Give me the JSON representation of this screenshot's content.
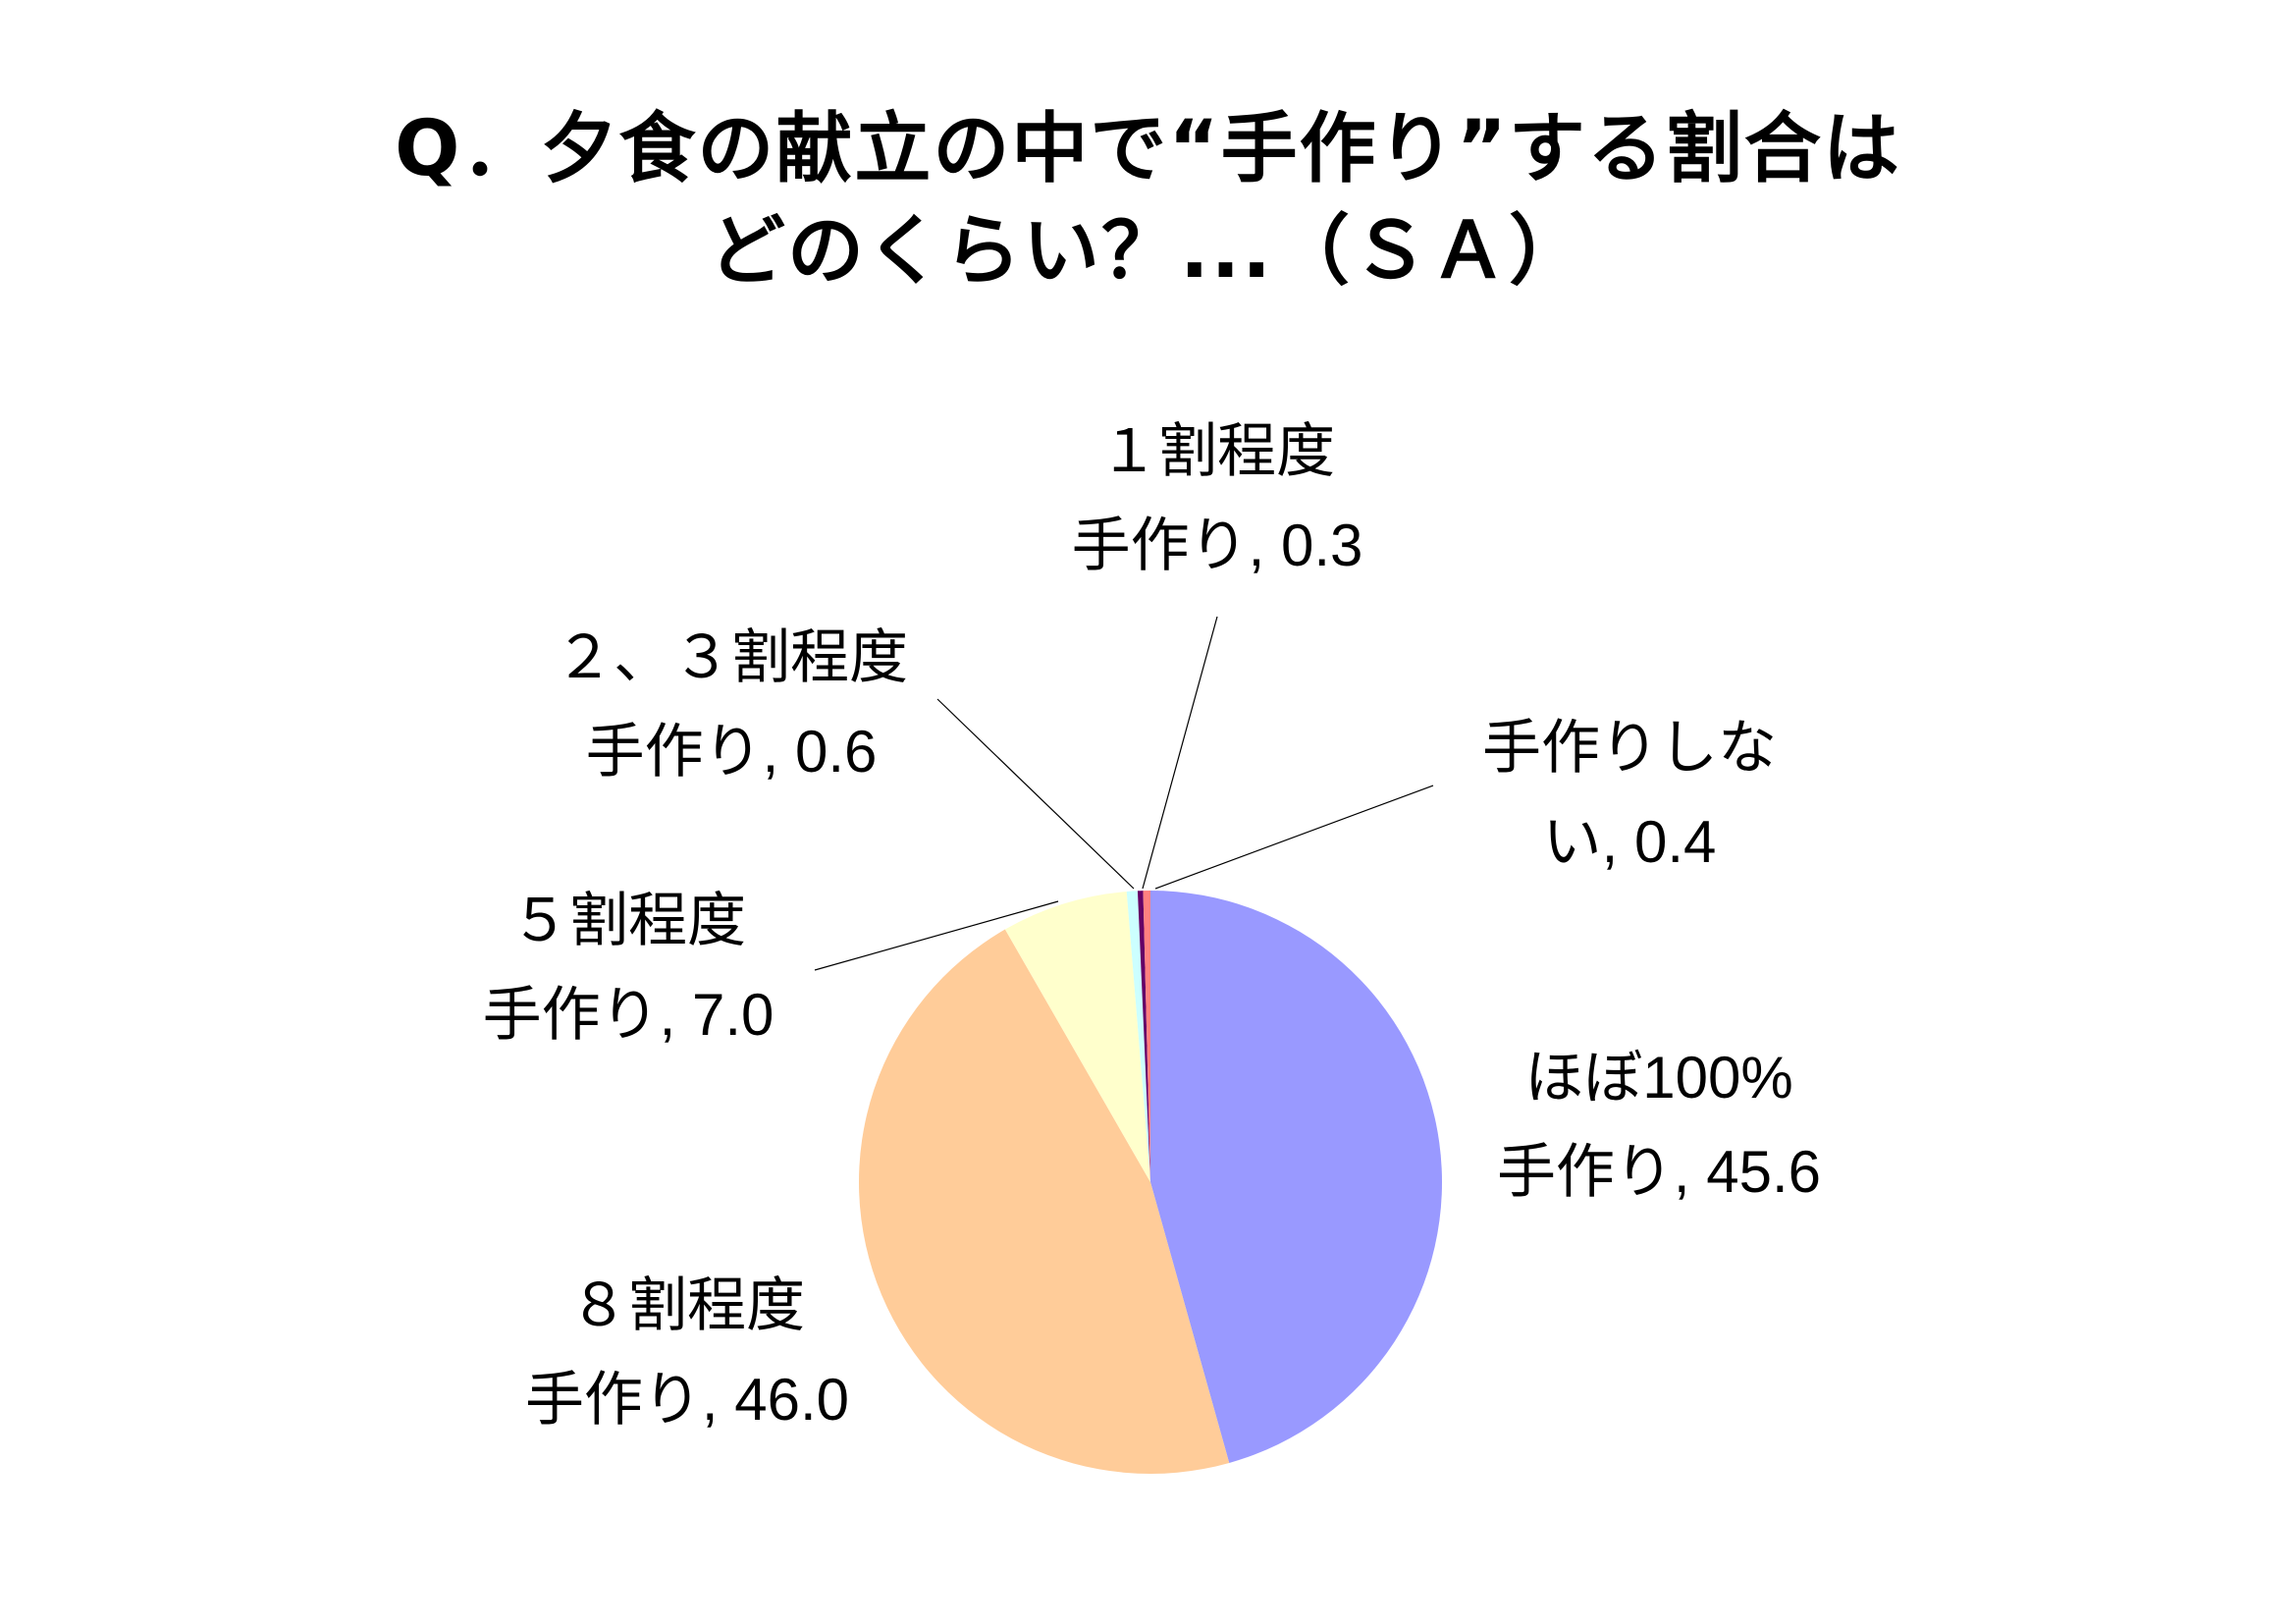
{
  "title": {
    "line1": "Q．夕食の献立の中で“手作り”する割合は",
    "line2": "どのくらい？...（ＳＡ）"
  },
  "chart_data": {
    "type": "pie",
    "start_angle_deg": 0,
    "direction": "clockwise",
    "slices": [
      {
        "label": [
          "ほぼ100%",
          "手作り, 45.6"
        ],
        "value": 45.6,
        "color": "#9999ff"
      },
      {
        "label": [
          "８割程度",
          "手作り, 46.0"
        ],
        "value": 46.0,
        "color": "#ffcc99"
      },
      {
        "label": [
          "５割程度",
          "手作り, 7.0"
        ],
        "value": 7.0,
        "color": "#ffffcc"
      },
      {
        "label": [
          "２、３割程度",
          "手作り, 0.6"
        ],
        "value": 0.6,
        "color": "#ccffff"
      },
      {
        "label": [
          "１割程度",
          "手作り, 0.3"
        ],
        "value": 0.3,
        "color": "#660066"
      },
      {
        "label": [
          "手作りしな",
          "い, 0.4"
        ],
        "value": 0.4,
        "color": "#ff8080"
      }
    ]
  }
}
